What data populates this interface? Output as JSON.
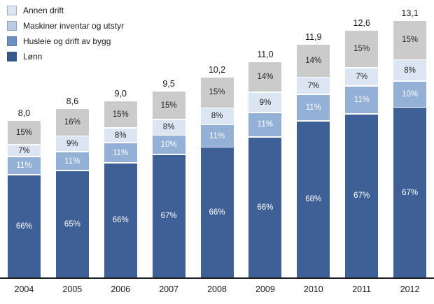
{
  "chart_data": {
    "type": "bar",
    "stacked": true,
    "title": "",
    "xlabel": "",
    "ylabel": "",
    "legend_position": "top-left",
    "grid": false,
    "baseline_color": "#1f1f1f",
    "categories": [
      "2004",
      "2005",
      "2006",
      "2007",
      "2008",
      "2009",
      "2010",
      "2011",
      "2012"
    ],
    "totals": [
      8.0,
      8.6,
      9.0,
      9.5,
      10.2,
      11.0,
      11.9,
      12.6,
      13.1
    ],
    "total_labels": [
      "8,0",
      "8,6",
      "9,0",
      "9,5",
      "10,2",
      "11,0",
      "11,9",
      "12,6",
      "13,1"
    ],
    "series": [
      {
        "name": "Annen drift",
        "stack_position": "top",
        "bar_color": "#cbcbcb",
        "legend_color": "#dce6f2",
        "text_color": "#262626",
        "values_pct": [
          15,
          16,
          15,
          15,
          15,
          14,
          14,
          15,
          15
        ]
      },
      {
        "name": "Maskiner inventar og utstyr",
        "stack_position": "second-from-top",
        "bar_color": "#dce6f2",
        "legend_color": "#b8cce4",
        "text_color": "#262626",
        "values_pct": [
          7,
          9,
          8,
          8,
          8,
          9,
          7,
          7,
          8
        ]
      },
      {
        "name": "Husleie og drift av bygg",
        "stack_position": "third-from-top",
        "bar_color": "#93b0d6",
        "legend_color": "#6d91c3",
        "text_color": "#ffffff",
        "values_pct": [
          11,
          11,
          11,
          10,
          11,
          11,
          11,
          11,
          10
        ]
      },
      {
        "name": "Lønn",
        "stack_position": "bottom",
        "bar_color": "#3f6096",
        "legend_color": "#375a8e",
        "text_color": "#ffffff",
        "values_pct": [
          66,
          65,
          66,
          67,
          66,
          66,
          68,
          67,
          67
        ]
      }
    ]
  }
}
